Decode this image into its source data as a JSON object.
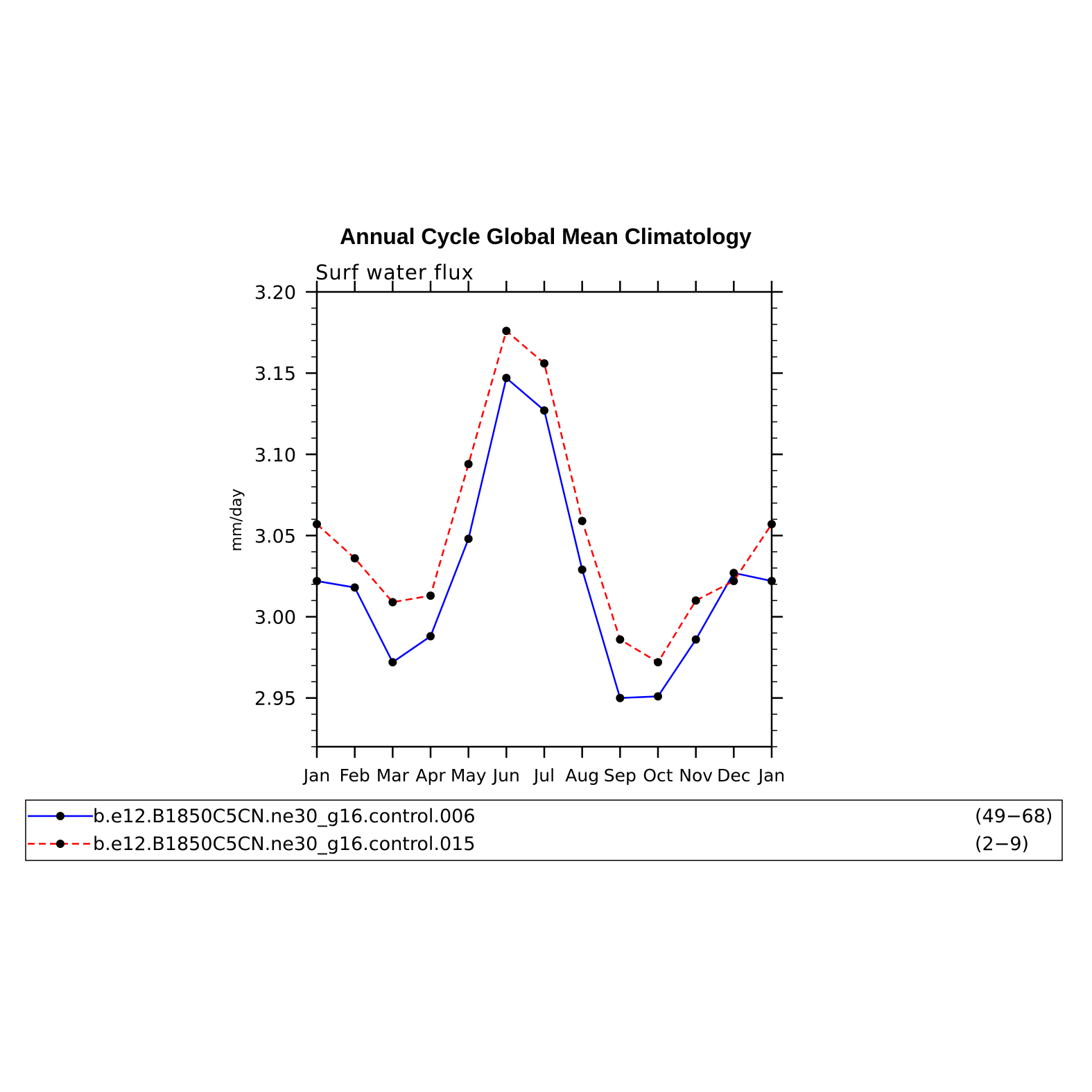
{
  "chart_data": {
    "type": "line",
    "title": "Annual Cycle Global Mean Climatology",
    "subtitle": "Surf water flux",
    "ylabel": "mm/day",
    "xlabel": "",
    "categories": [
      "Jan",
      "Feb",
      "Mar",
      "Apr",
      "May",
      "Jun",
      "Jul",
      "Aug",
      "Sep",
      "Oct",
      "Nov",
      "Dec",
      "Jan"
    ],
    "ylim": [
      2.92,
      3.2
    ],
    "yticks": [
      2.95,
      3.0,
      3.05,
      3.1,
      3.15,
      3.2
    ],
    "ytick_labels": [
      "2.95",
      "3.00",
      "3.05",
      "3.10",
      "3.15",
      "3.20"
    ],
    "grid": false,
    "legend_position": "bottom",
    "series": [
      {
        "name": "b.e12.B1850C5CN.ne30_g16.control.006",
        "years": "(49−68)",
        "color": "#0000ff",
        "dash": "solid",
        "values": [
          3.022,
          3.018,
          2.972,
          2.988,
          3.048,
          3.147,
          3.127,
          3.029,
          2.95,
          2.951,
          2.986,
          3.027,
          3.022
        ]
      },
      {
        "name": "b.e12.B1850C5CN.ne30_g16.control.015",
        "years": "(2−9)",
        "color": "#ff0000",
        "dash": "dashed",
        "values": [
          3.057,
          3.036,
          3.009,
          3.013,
          3.094,
          3.176,
          3.156,
          3.059,
          2.986,
          2.972,
          3.01,
          3.022,
          3.057
        ]
      }
    ]
  }
}
